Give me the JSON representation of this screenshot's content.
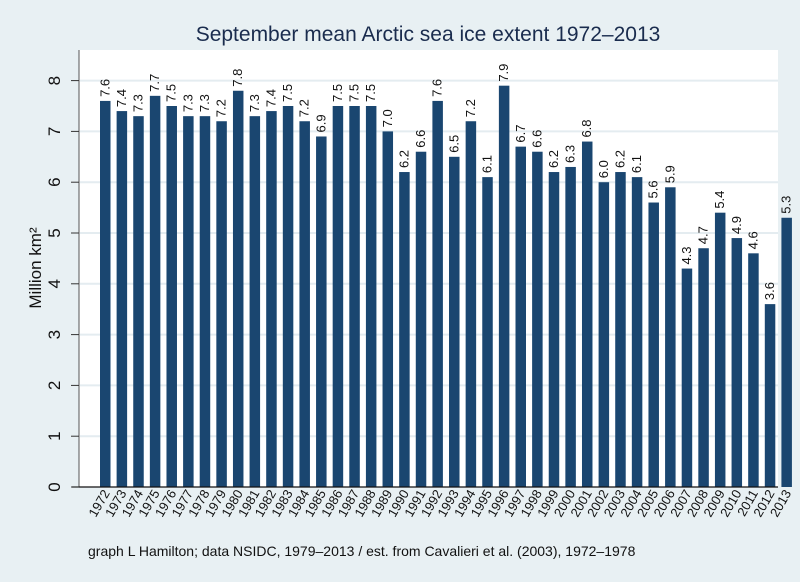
{
  "chart_data": {
    "type": "bar",
    "title": "September mean Arctic sea ice extent 1972–2013",
    "xlabel": "",
    "ylabel": "Million km²",
    "ylim": [
      0,
      8.5
    ],
    "yticks": [
      0,
      1,
      2,
      3,
      4,
      5,
      6,
      7,
      8
    ],
    "grid": true,
    "legend": "none",
    "caption": "graph L Hamilton;  data NSIDC, 1979–2013 / est. from Cavalieri et al. (2003), 1972–1978",
    "colors": {
      "bar": "#1a4670",
      "background": "#e8f0f3",
      "plot_background": "#ffffff",
      "grid": "#e4ecf0"
    },
    "categories": [
      "1972",
      "1973",
      "1974",
      "1975",
      "1976",
      "1977",
      "1978",
      "1979",
      "1980",
      "1981",
      "1982",
      "1983",
      "1984",
      "1985",
      "1986",
      "1987",
      "1988",
      "1989",
      "1990",
      "1991",
      "1992",
      "1993",
      "1994",
      "1995",
      "1996",
      "1997",
      "1998",
      "1999",
      "2000",
      "2001",
      "2002",
      "2003",
      "2004",
      "2005",
      "2006",
      "2007",
      "2008",
      "2009",
      "2010",
      "2011",
      "2012",
      "2013"
    ],
    "values": [
      7.6,
      7.4,
      7.3,
      7.7,
      7.5,
      7.3,
      7.3,
      7.2,
      7.8,
      7.3,
      7.4,
      7.5,
      7.2,
      6.9,
      7.5,
      7.5,
      7.5,
      7.0,
      6.2,
      6.6,
      7.6,
      6.5,
      7.2,
      6.1,
      7.9,
      6.7,
      6.6,
      6.2,
      6.3,
      6.8,
      6.0,
      6.2,
      6.1,
      5.6,
      5.9,
      4.3,
      4.7,
      5.4,
      4.9,
      4.6,
      3.6,
      5.3
    ],
    "labels": [
      "7.6",
      "7.4",
      "7.3",
      "7.7",
      "7.5",
      "7.3",
      "7.3",
      "7.2",
      "7.8",
      "7.3",
      "7.4",
      "7.5",
      "7.2",
      "6.9",
      "7.5",
      "7.5",
      "7.5",
      "7.0",
      "6.2",
      "6.6",
      "7.6",
      "6.5",
      "7.2",
      "6.1",
      "7.9",
      "6.7",
      "6.6",
      "6.2",
      "6.3",
      "6.8",
      "6.0",
      "6.2",
      "6.1",
      "5.6",
      "5.9",
      "4.3",
      "4.7",
      "5.4",
      "4.9",
      "4.6",
      "3.6",
      "5.3"
    ]
  }
}
